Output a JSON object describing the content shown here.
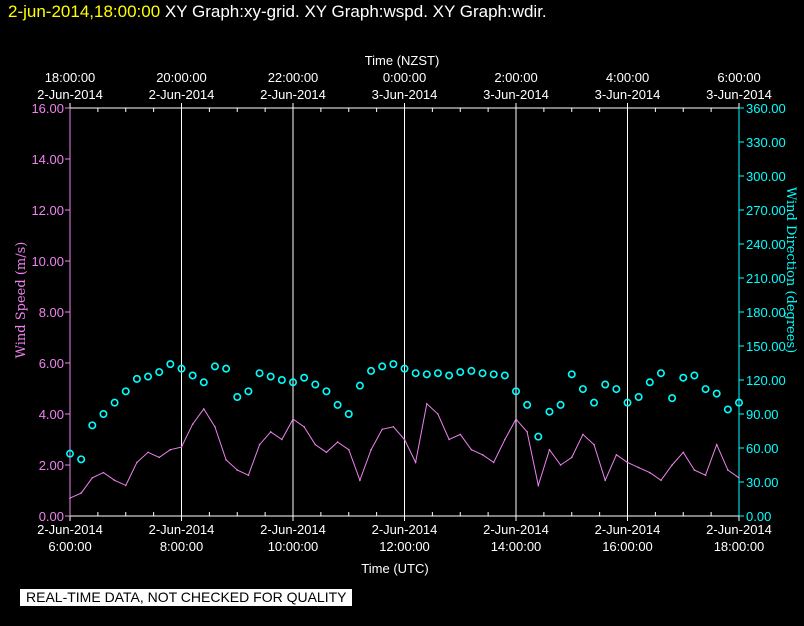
{
  "header": {
    "timestamp": "2-jun-2014,18:00:00",
    "title": "XY Graph:xy-grid.  XY Graph:wspd.  XY Graph:wdir."
  },
  "disclaimer": "REAL-TIME DATA, NOT CHECKED FOR QUALITY",
  "colors": {
    "background": "#000000",
    "speed": "#ee82ee",
    "direction": "#00ffff",
    "grid": "#ffffff",
    "timestamp": "#ffff00"
  },
  "chart_data": {
    "type": "line",
    "xlabel": "Time (UTC)",
    "x2label": "Time (NZST)",
    "ylabel": "Wind Speed (m/s)",
    "y2label": "Wind Direction (degrees)",
    "xlim": [
      6,
      18
    ],
    "ylim": [
      0,
      16
    ],
    "y2lim": [
      0,
      360
    ],
    "grid": "vertical lines at every 2 hours",
    "bottom_ticks": [
      {
        "x": 6,
        "line1": "2-Jun-2014",
        "line2": "6:00:00"
      },
      {
        "x": 8,
        "line1": "2-Jun-2014",
        "line2": "8:00:00"
      },
      {
        "x": 10,
        "line1": "2-Jun-2014",
        "line2": "10:00:00"
      },
      {
        "x": 12,
        "line1": "2-Jun-2014",
        "line2": "12:00:00"
      },
      {
        "x": 14,
        "line1": "2-Jun-2014",
        "line2": "14:00:00"
      },
      {
        "x": 16,
        "line1": "2-Jun-2014",
        "line2": "16:00:00"
      },
      {
        "x": 18,
        "line1": "2-Jun-2014",
        "line2": "18:00:00"
      }
    ],
    "top_ticks": [
      {
        "x": 6,
        "line1": "18:00:00",
        "line2": "2-Jun-2014"
      },
      {
        "x": 8,
        "line1": "20:00:00",
        "line2": "2-Jun-2014"
      },
      {
        "x": 10,
        "line1": "22:00:00",
        "line2": "2-Jun-2014"
      },
      {
        "x": 12,
        "line1": "0:00:00",
        "line2": "3-Jun-2014"
      },
      {
        "x": 14,
        "line1": "2:00:00",
        "line2": "3-Jun-2014"
      },
      {
        "x": 16,
        "line1": "4:00:00",
        "line2": "3-Jun-2014"
      },
      {
        "x": 18,
        "line1": "6:00:00",
        "line2": "3-Jun-2014"
      }
    ],
    "left_ticks": [
      "0.00",
      "2.00",
      "4.00",
      "6.00",
      "8.00",
      "10.00",
      "12.00",
      "14.00",
      "16.00"
    ],
    "right_ticks": [
      "0.00",
      "30.00",
      "60.00",
      "90.00",
      "120.00",
      "150.00",
      "180.00",
      "210.00",
      "240.00",
      "270.00",
      "300.00",
      "330.00",
      "360.00"
    ],
    "series": [
      {
        "name": "wspd",
        "style": "line",
        "x": [
          6.0,
          6.2,
          6.4,
          6.6,
          6.8,
          7.0,
          7.2,
          7.4,
          7.6,
          7.8,
          8.0,
          8.2,
          8.4,
          8.6,
          8.8,
          9.0,
          9.2,
          9.4,
          9.6,
          9.8,
          10.0,
          10.2,
          10.4,
          10.6,
          10.8,
          11.0,
          11.2,
          11.4,
          11.6,
          11.8,
          12.0,
          12.2,
          12.4,
          12.6,
          12.8,
          13.0,
          13.2,
          13.4,
          13.6,
          13.8,
          14.0,
          14.2,
          14.4,
          14.6,
          14.8,
          15.0,
          15.2,
          15.4,
          15.6,
          15.8,
          16.0,
          16.2,
          16.4,
          16.6,
          16.8,
          17.0,
          17.2,
          17.4,
          17.6,
          17.8,
          18.0
        ],
        "values": [
          0.7,
          0.9,
          1.5,
          1.7,
          1.4,
          1.2,
          2.1,
          2.5,
          2.3,
          2.6,
          2.7,
          3.6,
          4.2,
          3.5,
          2.2,
          1.8,
          1.6,
          2.8,
          3.3,
          3.0,
          3.8,
          3.5,
          2.8,
          2.5,
          2.9,
          2.6,
          1.4,
          2.6,
          3.4,
          3.5,
          3.0,
          2.1,
          4.4,
          4.0,
          3.0,
          3.2,
          2.6,
          2.4,
          2.1,
          3.0,
          3.8,
          3.3,
          1.2,
          2.6,
          2.0,
          2.3,
          3.2,
          2.8,
          1.4,
          2.4,
          2.1,
          1.9,
          1.7,
          1.4,
          2.0,
          2.5,
          1.8,
          1.6,
          2.8,
          1.8,
          1.5
        ]
      },
      {
        "name": "wdir",
        "style": "circles",
        "x": [
          6.0,
          6.2,
          6.4,
          6.6,
          6.8,
          7.0,
          7.2,
          7.4,
          7.6,
          7.8,
          8.0,
          8.2,
          8.4,
          8.6,
          8.8,
          9.0,
          9.2,
          9.4,
          9.6,
          9.8,
          10.0,
          10.2,
          10.4,
          10.6,
          10.8,
          11.0,
          11.2,
          11.4,
          11.6,
          11.8,
          12.0,
          12.2,
          12.4,
          12.6,
          12.8,
          13.0,
          13.2,
          13.4,
          13.6,
          13.8,
          14.0,
          14.2,
          14.4,
          14.6,
          14.8,
          15.0,
          15.2,
          15.4,
          15.6,
          15.8,
          16.0,
          16.2,
          16.4,
          16.6,
          16.8,
          17.0,
          17.2,
          17.4,
          17.6,
          17.8,
          18.0
        ],
        "values": [
          55,
          50,
          80,
          90,
          100,
          110,
          121,
          123,
          127,
          134,
          130,
          124,
          118,
          132,
          130,
          105,
          110,
          126,
          123,
          120,
          118,
          122,
          116,
          110,
          98,
          90,
          115,
          128,
          132,
          134,
          130,
          126,
          125,
          126,
          124,
          127,
          128,
          126,
          125,
          124,
          110,
          98,
          70,
          92,
          98,
          125,
          112,
          100,
          116,
          112,
          100,
          105,
          118,
          126,
          104,
          122,
          124,
          112,
          108,
          94,
          100
        ]
      }
    ]
  }
}
